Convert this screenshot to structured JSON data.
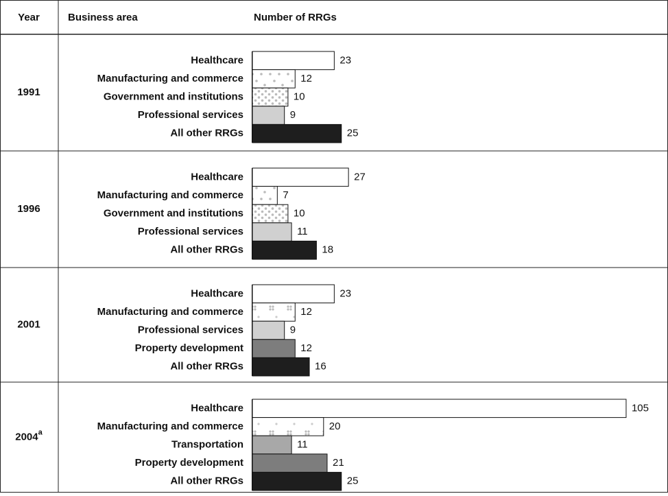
{
  "header": {
    "year": "Year",
    "area": "Business area",
    "number": "Number of RRGs"
  },
  "chart_data": [
    {
      "type": "bar",
      "title": "1991",
      "categories": [
        "Healthcare",
        "Manufacturing and commerce",
        "Government and institutions",
        "Professional services",
        "All other RRGs"
      ],
      "values": [
        23,
        12,
        10,
        9,
        25
      ],
      "colors": [
        "#ffffff",
        "#ffffff",
        "#ffffff",
        "#d0d0d0",
        "#1e1e1e"
      ],
      "patterns": [
        null,
        "sparse-dots",
        "dense-dots",
        null,
        null
      ]
    },
    {
      "type": "bar",
      "title": "1996",
      "categories": [
        "Healthcare",
        "Manufacturing and commerce",
        "Government and institutions",
        "Professional services",
        "All other RRGs"
      ],
      "values": [
        27,
        7,
        10,
        11,
        18
      ],
      "colors": [
        "#ffffff",
        "#ffffff",
        "#ffffff",
        "#d0d0d0",
        "#1e1e1e"
      ],
      "patterns": [
        null,
        "sparse-dots",
        "dense-dots",
        null,
        null
      ]
    },
    {
      "type": "bar",
      "title": "2001",
      "categories": [
        "Healthcare",
        "Manufacturing and commerce",
        "Professional services",
        "Property development",
        "All other RRGs"
      ],
      "values": [
        23,
        12,
        9,
        12,
        16
      ],
      "colors": [
        "#ffffff",
        "#ffffff",
        "#d0d0d0",
        "#7d7d7d",
        "#1e1e1e"
      ],
      "patterns": [
        null,
        "clusters",
        null,
        null,
        null
      ]
    },
    {
      "type": "bar",
      "title": "2004",
      "title_note": "a",
      "categories": [
        "Healthcare",
        "Manufacturing and commerce",
        "Transportation",
        "Property development",
        "All other RRGs"
      ],
      "values": [
        105,
        20,
        11,
        21,
        25
      ],
      "colors": [
        "#ffffff",
        "#ffffff",
        "#a8a8a8",
        "#7d7d7d",
        "#1e1e1e"
      ],
      "patterns": [
        null,
        "clusters",
        null,
        null,
        null
      ]
    }
  ]
}
